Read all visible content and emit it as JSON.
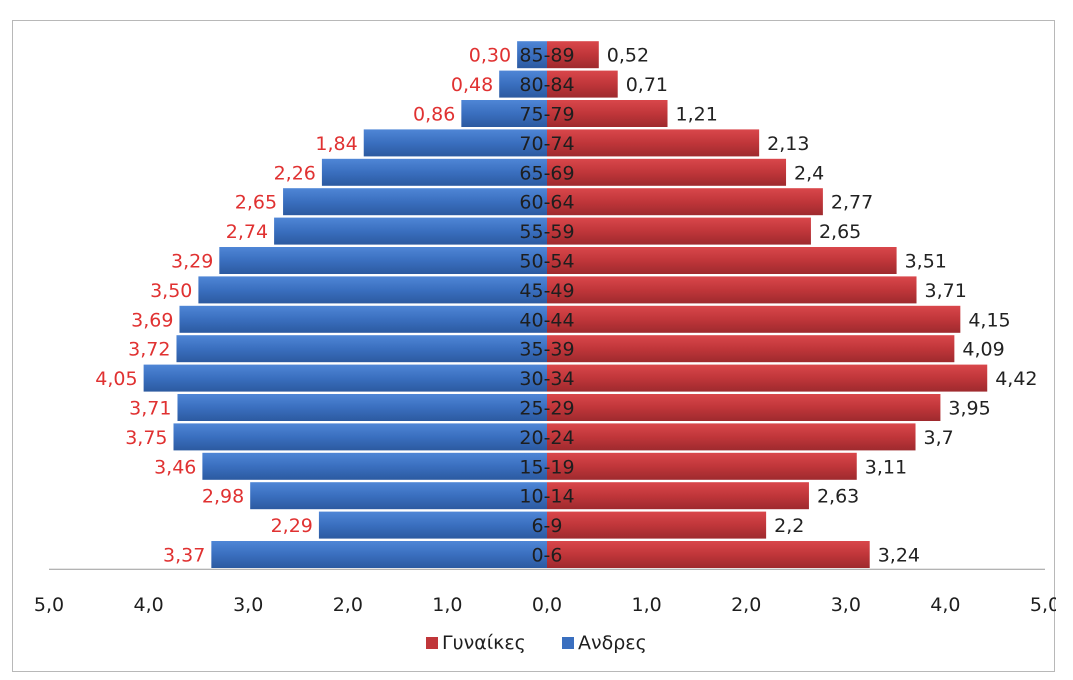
{
  "chart_data": {
    "type": "bar",
    "orientation": "horizontal-population-pyramid",
    "categories": [
      "0-6",
      "6-9",
      "10-14",
      "15-19",
      "20-24",
      "25-29",
      "30-34",
      "35-39",
      "40-44",
      "45-49",
      "50-54",
      "55-59",
      "60-64",
      "65-69",
      "70-74",
      "75-79",
      "80-84",
      "85-89"
    ],
    "series": [
      {
        "name": "Ανδρες",
        "side": "left",
        "color": "#3a6fbf",
        "label_color": "#e03131",
        "values": [
          3.37,
          2.29,
          2.98,
          3.46,
          3.75,
          3.71,
          4.05,
          3.72,
          3.69,
          3.5,
          3.29,
          2.74,
          2.65,
          2.26,
          1.84,
          0.86,
          0.48,
          0.3
        ],
        "labels": [
          "3,37",
          "2,29",
          "2,98",
          "3,46",
          "3,75",
          "3,71",
          "4,05",
          "3,72",
          "3,69",
          "3,50",
          "3,29",
          "2,74",
          "2,65",
          "2,26",
          "1,84",
          "0,86",
          "0,48",
          "0,30"
        ]
      },
      {
        "name": "Γυναίκες",
        "side": "right",
        "color": "#c0363a",
        "label_color": "#222222",
        "values": [
          3.24,
          2.2,
          2.63,
          3.11,
          3.7,
          3.95,
          4.42,
          4.09,
          4.15,
          3.71,
          3.51,
          2.65,
          2.77,
          2.4,
          2.13,
          1.21,
          0.71,
          0.52
        ],
        "labels": [
          "3,24",
          "2,2",
          "2,63",
          "3,11",
          "3,7",
          "3,95",
          "4,42",
          "4,09",
          "4,15",
          "3,71",
          "3,51",
          "2,65",
          "2,77",
          "2,4",
          "2,13",
          "1,21",
          "0,71",
          "0,52"
        ]
      }
    ],
    "xlim": [
      -5,
      5
    ],
    "x_ticks": [
      "5,0",
      "4,0",
      "3,0",
      "2,0",
      "1,0",
      "0,0",
      "1,0",
      "2,0",
      "3,0",
      "4,0",
      "5,0"
    ],
    "legend_position": "bottom",
    "legend": [
      "Γυναίκες",
      "Ανδρες"
    ],
    "grid": false
  }
}
